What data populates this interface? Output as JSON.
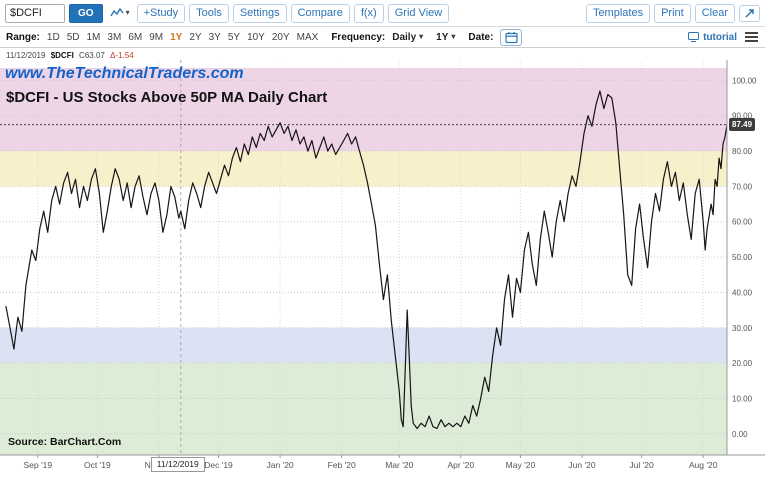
{
  "toolbar": {
    "symbol_value": "$DCFI",
    "go_label": "GO",
    "buttons_left": [
      "+Study",
      "Tools",
      "Settings",
      "Compare",
      "f(x)",
      "Grid View"
    ],
    "buttons_right": [
      "Templates",
      "Print",
      "Clear"
    ]
  },
  "range_bar": {
    "range_label": "Range:",
    "ranges": [
      "1D",
      "5D",
      "1M",
      "3M",
      "6M",
      "9M",
      "1Y",
      "2Y",
      "3Y",
      "5Y",
      "10Y",
      "20Y",
      "MAX"
    ],
    "active_range": "1Y",
    "frequency_label": "Frequency:",
    "frequency_value": "Daily",
    "period_value": "1Y",
    "date_label": "Date:",
    "tutorial_label": "tutorial"
  },
  "chart": {
    "info_date": "11/12/2019",
    "info_symbol": "$DCFI",
    "info_close": "C63.07",
    "info_change": "Δ-1.54",
    "watermark": "www.TheTechnicalTraders.com",
    "title": "$DCFI - US Stocks Above 50P MA Daily Chart",
    "source": "Source: BarChart.Com",
    "cursor_date": "11/12/2019",
    "last_price_label": "87.49"
  },
  "icons": {
    "chart_type": "line-chart-icon",
    "expand": "expand-icon",
    "calendar": "calendar-icon",
    "tutorial": "screen-icon",
    "menu": "hamburger-icon",
    "dropdown": "caret-down-icon"
  },
  "colors": {
    "accent_blue": "#2d74b5",
    "active_range_orange": "#d9731a",
    "watermark_blue": "#1563c9",
    "series_black": "#151515",
    "band_pink": "#eed4e7",
    "band_yellow": "#f8f0cb",
    "band_blue": "#dbe2f3",
    "band_green": "#ddecd6"
  },
  "chart_data": {
    "type": "line",
    "title": "$DCFI - US Stocks Above 50P MA Daily Chart",
    "x_axis_note": "daily data, Sep 2019 - Aug 2020, x in days from chart left edge",
    "x_max": 363,
    "ylim": [
      -6,
      103.5
    ],
    "grid": true,
    "legend": "none",
    "x_ticks": [
      {
        "day": 16,
        "label": "Sep '19"
      },
      {
        "day": 46,
        "label": "Oct '19"
      },
      {
        "day": 77,
        "label": "Nov '19"
      },
      {
        "day": 107,
        "label": "Dec '19"
      },
      {
        "day": 138,
        "label": "Jan '20"
      },
      {
        "day": 169,
        "label": "Feb '20"
      },
      {
        "day": 198,
        "label": "Mar '20"
      },
      {
        "day": 229,
        "label": "Apr '20"
      },
      {
        "day": 259,
        "label": "May '20"
      },
      {
        "day": 290,
        "label": "Jun '20"
      },
      {
        "day": 320,
        "label": "Jul '20"
      },
      {
        "day": 351,
        "label": "Aug '20"
      }
    ],
    "y_ticks": [
      {
        "v": 0,
        "label": "0.00"
      },
      {
        "v": 10,
        "label": "10.00"
      },
      {
        "v": 20,
        "label": "20.00"
      },
      {
        "v": 30,
        "label": "30.00"
      },
      {
        "v": 40,
        "label": "40.00"
      },
      {
        "v": 50,
        "label": "50.00"
      },
      {
        "v": 60,
        "label": "60.00"
      },
      {
        "v": 70,
        "label": "70.00"
      },
      {
        "v": 80,
        "label": "80.00"
      },
      {
        "v": 90,
        "label": "90.00"
      },
      {
        "v": 100,
        "label": "100.00"
      }
    ],
    "bands": [
      {
        "from": 80,
        "to": 103.5,
        "color": "#eed4e7"
      },
      {
        "from": 70,
        "to": 80,
        "color": "#f8f0cb"
      },
      {
        "from": 20,
        "to": 30,
        "color": "#dbe2f3"
      },
      {
        "from": -6,
        "to": 20,
        "color": "#ddecd6"
      }
    ],
    "cursor_day": 88,
    "cursor_label": "11/12/2019",
    "last_price": 87.49,
    "series": [
      {
        "name": "$DCFI",
        "color": "#151515",
        "points": [
          [
            0,
            36
          ],
          [
            2,
            30
          ],
          [
            4,
            24
          ],
          [
            6,
            33
          ],
          [
            8,
            29
          ],
          [
            10,
            42
          ],
          [
            13,
            52
          ],
          [
            15,
            49
          ],
          [
            17,
            58
          ],
          [
            19,
            63
          ],
          [
            21,
            57
          ],
          [
            23,
            66
          ],
          [
            25,
            70
          ],
          [
            27,
            65
          ],
          [
            29,
            71
          ],
          [
            31,
            74
          ],
          [
            33,
            68
          ],
          [
            35,
            72
          ],
          [
            37,
            64
          ],
          [
            39,
            70
          ],
          [
            41,
            66
          ],
          [
            43,
            72
          ],
          [
            45,
            75
          ],
          [
            47,
            68
          ],
          [
            49,
            57
          ],
          [
            51,
            63
          ],
          [
            53,
            70
          ],
          [
            55,
            75
          ],
          [
            57,
            72
          ],
          [
            59,
            66
          ],
          [
            61,
            71
          ],
          [
            63,
            64
          ],
          [
            65,
            70
          ],
          [
            67,
            73
          ],
          [
            69,
            67
          ],
          [
            71,
            62
          ],
          [
            73,
            68
          ],
          [
            75,
            71
          ],
          [
            77,
            66
          ],
          [
            79,
            57
          ],
          [
            81,
            62
          ],
          [
            83,
            70
          ],
          [
            85,
            67
          ],
          [
            87,
            61
          ],
          [
            88,
            63
          ],
          [
            90,
            58
          ],
          [
            92,
            66
          ],
          [
            94,
            71
          ],
          [
            96,
            68
          ],
          [
            98,
            64
          ],
          [
            100,
            70
          ],
          [
            102,
            74
          ],
          [
            104,
            71
          ],
          [
            106,
            68
          ],
          [
            108,
            72
          ],
          [
            110,
            76
          ],
          [
            112,
            73
          ],
          [
            114,
            78
          ],
          [
            116,
            81
          ],
          [
            118,
            77
          ],
          [
            120,
            82
          ],
          [
            122,
            79
          ],
          [
            124,
            84
          ],
          [
            126,
            81
          ],
          [
            128,
            85
          ],
          [
            130,
            83
          ],
          [
            132,
            87
          ],
          [
            134,
            84
          ],
          [
            136,
            86
          ],
          [
            138,
            88
          ],
          [
            140,
            85
          ],
          [
            142,
            87
          ],
          [
            144,
            83
          ],
          [
            146,
            86
          ],
          [
            148,
            82
          ],
          [
            150,
            84
          ],
          [
            152,
            80
          ],
          [
            154,
            83
          ],
          [
            156,
            78
          ],
          [
            158,
            81
          ],
          [
            160,
            84
          ],
          [
            162,
            80
          ],
          [
            164,
            82
          ],
          [
            166,
            79
          ],
          [
            168,
            81
          ],
          [
            170,
            83
          ],
          [
            172,
            85
          ],
          [
            174,
            82
          ],
          [
            176,
            84
          ],
          [
            178,
            80
          ],
          [
            180,
            76
          ],
          [
            182,
            71
          ],
          [
            184,
            65
          ],
          [
            186,
            59
          ],
          [
            188,
            48
          ],
          [
            190,
            38
          ],
          [
            192,
            45
          ],
          [
            194,
            32
          ],
          [
            196,
            22
          ],
          [
            198,
            12
          ],
          [
            199,
            4
          ],
          [
            200,
            2
          ],
          [
            201,
            18
          ],
          [
            202,
            35
          ],
          [
            203,
            22
          ],
          [
            204,
            8
          ],
          [
            205,
            3
          ],
          [
            207,
            1.5
          ],
          [
            209,
            3
          ],
          [
            211,
            2
          ],
          [
            213,
            5
          ],
          [
            215,
            2
          ],
          [
            217,
            1.5
          ],
          [
            219,
            4
          ],
          [
            221,
            2
          ],
          [
            223,
            3
          ],
          [
            225,
            2
          ],
          [
            227,
            3
          ],
          [
            229,
            2
          ],
          [
            231,
            5
          ],
          [
            233,
            3
          ],
          [
            235,
            8
          ],
          [
            237,
            5
          ],
          [
            239,
            10
          ],
          [
            241,
            16
          ],
          [
            243,
            12
          ],
          [
            245,
            22
          ],
          [
            247,
            30
          ],
          [
            249,
            25
          ],
          [
            251,
            38
          ],
          [
            253,
            45
          ],
          [
            255,
            33
          ],
          [
            257,
            44
          ],
          [
            259,
            40
          ],
          [
            261,
            52
          ],
          [
            263,
            57
          ],
          [
            265,
            48
          ],
          [
            267,
            42
          ],
          [
            269,
            55
          ],
          [
            271,
            63
          ],
          [
            273,
            57
          ],
          [
            275,
            50
          ],
          [
            277,
            60
          ],
          [
            279,
            66
          ],
          [
            281,
            60
          ],
          [
            283,
            68
          ],
          [
            285,
            73
          ],
          [
            287,
            70
          ],
          [
            289,
            77
          ],
          [
            291,
            85
          ],
          [
            293,
            90
          ],
          [
            295,
            87
          ],
          [
            297,
            93
          ],
          [
            299,
            97
          ],
          [
            301,
            92
          ],
          [
            303,
            96
          ],
          [
            305,
            95
          ],
          [
            307,
            88
          ],
          [
            309,
            75
          ],
          [
            311,
            62
          ],
          [
            313,
            45
          ],
          [
            315,
            42
          ],
          [
            317,
            58
          ],
          [
            319,
            65
          ],
          [
            321,
            55
          ],
          [
            323,
            47
          ],
          [
            325,
            60
          ],
          [
            327,
            68
          ],
          [
            329,
            63
          ],
          [
            331,
            72
          ],
          [
            333,
            77
          ],
          [
            335,
            70
          ],
          [
            337,
            74
          ],
          [
            339,
            66
          ],
          [
            341,
            71
          ],
          [
            343,
            62
          ],
          [
            345,
            55
          ],
          [
            347,
            68
          ],
          [
            349,
            72
          ],
          [
            351,
            60
          ],
          [
            352,
            52
          ],
          [
            353,
            58
          ],
          [
            355,
            65
          ],
          [
            356,
            62
          ],
          [
            357,
            72
          ],
          [
            358,
            70
          ],
          [
            359,
            78
          ],
          [
            360,
            75
          ],
          [
            361,
            82
          ],
          [
            362,
            84
          ],
          [
            363,
            87.49
          ]
        ]
      }
    ]
  }
}
